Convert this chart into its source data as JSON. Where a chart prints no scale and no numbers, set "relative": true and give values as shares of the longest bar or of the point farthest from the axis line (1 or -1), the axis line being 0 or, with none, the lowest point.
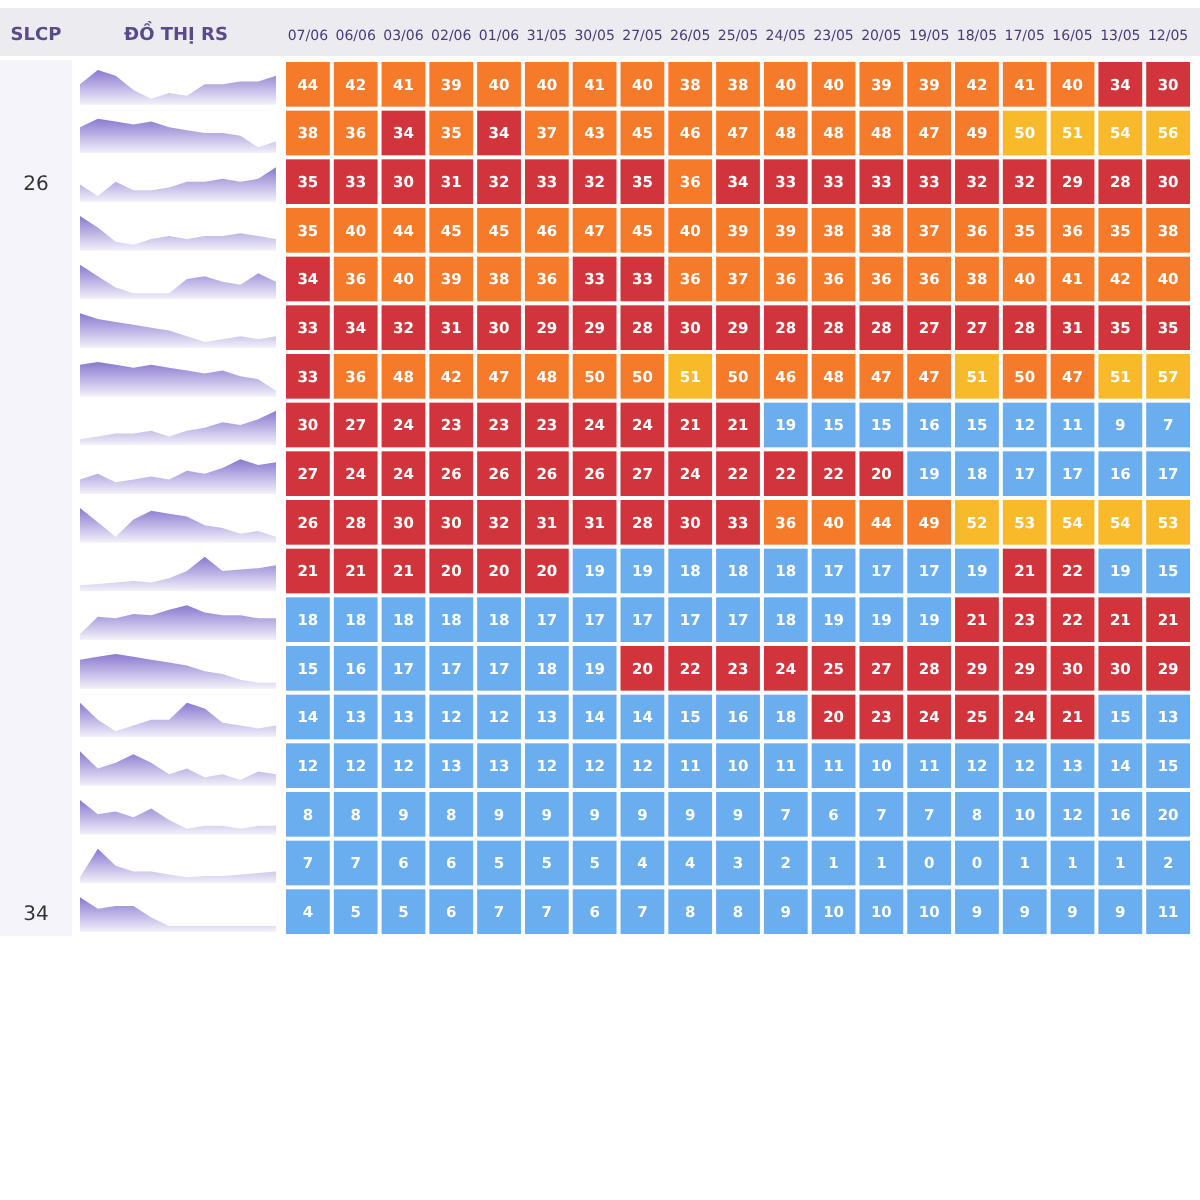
{
  "chart_data": [
    {
      "type": "heatmap",
      "annotations": [
        "SLCP",
        "ĐỒ THỊ RS",
        "26",
        "34"
      ],
      "y_categories": [
        null,
        null,
        null,
        null,
        null,
        null,
        null,
        null,
        null,
        null,
        null,
        null,
        null,
        null,
        null,
        null,
        null,
        null
      ],
      "categories": [
        "07/06",
        "06/06",
        "03/06",
        "02/06",
        "01/06",
        "31/05",
        "30/05",
        "27/05",
        "26/05",
        "25/05",
        "24/05",
        "23/05",
        "20/05",
        "19/05",
        "18/05",
        "17/05",
        "16/05",
        "13/05",
        "12/05"
      ],
      "cells": [
        [
          44,
          42,
          41,
          39,
          40,
          40,
          41,
          40,
          38,
          38,
          40,
          40,
          39,
          39,
          42,
          41,
          40,
          34,
          30
        ],
        [
          38,
          36,
          34,
          35,
          34,
          37,
          43,
          45,
          46,
          47,
          48,
          48,
          48,
          47,
          49,
          50,
          51,
          54,
          56
        ],
        [
          35,
          33,
          30,
          31,
          32,
          33,
          32,
          35,
          36,
          34,
          33,
          33,
          33,
          33,
          32,
          32,
          29,
          28,
          30
        ],
        [
          35,
          40,
          44,
          45,
          45,
          46,
          47,
          45,
          40,
          39,
          39,
          38,
          38,
          37,
          36,
          35,
          36,
          35,
          38
        ],
        [
          34,
          36,
          40,
          39,
          38,
          36,
          33,
          33,
          36,
          37,
          36,
          36,
          36,
          36,
          38,
          40,
          41,
          42,
          40
        ],
        [
          33,
          34,
          32,
          31,
          30,
          29,
          29,
          28,
          30,
          29,
          28,
          28,
          28,
          27,
          27,
          28,
          31,
          35,
          35
        ],
        [
          33,
          36,
          48,
          42,
          47,
          48,
          50,
          50,
          51,
          50,
          46,
          48,
          47,
          47,
          51,
          50,
          47,
          51,
          57
        ],
        [
          30,
          27,
          24,
          23,
          23,
          23,
          24,
          24,
          21,
          21,
          19,
          15,
          15,
          16,
          15,
          12,
          11,
          9,
          7
        ],
        [
          27,
          24,
          24,
          26,
          26,
          26,
          26,
          27,
          24,
          22,
          22,
          22,
          20,
          19,
          18,
          17,
          17,
          16,
          17
        ],
        [
          26,
          28,
          30,
          30,
          32,
          31,
          31,
          28,
          30,
          33,
          36,
          40,
          44,
          49,
          52,
          53,
          54,
          54,
          53
        ],
        [
          21,
          21,
          21,
          20,
          20,
          20,
          19,
          19,
          18,
          18,
          18,
          17,
          17,
          17,
          19,
          21,
          22,
          19,
          15
        ],
        [
          18,
          18,
          18,
          18,
          18,
          17,
          17,
          17,
          17,
          17,
          18,
          19,
          19,
          19,
          21,
          23,
          22,
          21,
          21
        ],
        [
          15,
          16,
          17,
          17,
          17,
          18,
          19,
          20,
          22,
          23,
          24,
          25,
          27,
          28,
          29,
          29,
          30,
          30,
          29
        ],
        [
          14,
          13,
          13,
          12,
          12,
          13,
          14,
          14,
          15,
          16,
          18,
          20,
          23,
          24,
          25,
          24,
          21,
          15,
          13
        ],
        [
          12,
          12,
          12,
          13,
          13,
          12,
          12,
          12,
          11,
          10,
          11,
          11,
          10,
          11,
          12,
          12,
          13,
          14,
          15
        ],
        [
          8,
          8,
          9,
          8,
          9,
          9,
          9,
          9,
          9,
          9,
          7,
          6,
          7,
          7,
          8,
          10,
          12,
          16,
          20
        ],
        [
          7,
          7,
          6,
          6,
          5,
          5,
          5,
          4,
          4,
          3,
          2,
          1,
          1,
          0,
          0,
          1,
          1,
          1,
          2
        ],
        [
          4,
          5,
          5,
          6,
          7,
          7,
          6,
          7,
          8,
          8,
          9,
          10,
          10,
          10,
          9,
          9,
          9,
          9,
          11
        ]
      ],
      "colors": [
        [
          "#f57a2a",
          "#f57a2a",
          "#f57a2a",
          "#f57a2a",
          "#f57a2a",
          "#f57a2a",
          "#f57a2a",
          "#f57a2a",
          "#f57a2a",
          "#f57a2a",
          "#f57a2a",
          "#f57a2a",
          "#f57a2a",
          "#f57a2a",
          "#f57a2a",
          "#f57a2a",
          "#f57a2a",
          "#d1353b",
          "#d1353b"
        ],
        [
          "#f57a2a",
          "#f57a2a",
          "#d1353b",
          "#f57a2a",
          "#d1353b",
          "#f57a2a",
          "#f57a2a",
          "#f57a2a",
          "#f57a2a",
          "#f57a2a",
          "#f57a2a",
          "#f57a2a",
          "#f57a2a",
          "#f57a2a",
          "#f57a2a",
          "#f8b92a",
          "#f8b92a",
          "#f8b92a",
          "#f8b92a"
        ],
        [
          "#d1353b",
          "#d1353b",
          "#d1353b",
          "#d1353b",
          "#d1353b",
          "#d1353b",
          "#d1353b",
          "#d1353b",
          "#f57a2a",
          "#d1353b",
          "#d1353b",
          "#d1353b",
          "#d1353b",
          "#d1353b",
          "#d1353b",
          "#d1353b",
          "#d1353b",
          "#d1353b",
          "#d1353b"
        ],
        [
          "#f57a2a",
          "#f57a2a",
          "#f57a2a",
          "#f57a2a",
          "#f57a2a",
          "#f57a2a",
          "#f57a2a",
          "#f57a2a",
          "#f57a2a",
          "#f57a2a",
          "#f57a2a",
          "#f57a2a",
          "#f57a2a",
          "#f57a2a",
          "#f57a2a",
          "#f57a2a",
          "#f57a2a",
          "#f57a2a",
          "#f57a2a"
        ],
        [
          "#d1353b",
          "#f57a2a",
          "#f57a2a",
          "#f57a2a",
          "#f57a2a",
          "#f57a2a",
          "#d1353b",
          "#d1353b",
          "#f57a2a",
          "#f57a2a",
          "#f57a2a",
          "#f57a2a",
          "#f57a2a",
          "#f57a2a",
          "#f57a2a",
          "#f57a2a",
          "#f57a2a",
          "#f57a2a",
          "#f57a2a"
        ],
        [
          "#d1353b",
          "#d1353b",
          "#d1353b",
          "#d1353b",
          "#d1353b",
          "#d1353b",
          "#d1353b",
          "#d1353b",
          "#d1353b",
          "#d1353b",
          "#d1353b",
          "#d1353b",
          "#d1353b",
          "#d1353b",
          "#d1353b",
          "#d1353b",
          "#d1353b",
          "#d1353b",
          "#d1353b"
        ],
        [
          "#d1353b",
          "#f57a2a",
          "#f57a2a",
          "#f57a2a",
          "#f57a2a",
          "#f57a2a",
          "#f57a2a",
          "#f57a2a",
          "#f8b92a",
          "#f57a2a",
          "#f57a2a",
          "#f57a2a",
          "#f57a2a",
          "#f57a2a",
          "#f8b92a",
          "#f57a2a",
          "#f57a2a",
          "#f8b92a",
          "#f8b92a"
        ],
        [
          "#d1353b",
          "#d1353b",
          "#d1353b",
          "#d1353b",
          "#d1353b",
          "#d1353b",
          "#d1353b",
          "#d1353b",
          "#d1353b",
          "#d1353b",
          "#6aaef0",
          "#6aaef0",
          "#6aaef0",
          "#6aaef0",
          "#6aaef0",
          "#6aaef0",
          "#6aaef0",
          "#6aaef0",
          "#6aaef0"
        ],
        [
          "#d1353b",
          "#d1353b",
          "#d1353b",
          "#d1353b",
          "#d1353b",
          "#d1353b",
          "#d1353b",
          "#d1353b",
          "#d1353b",
          "#d1353b",
          "#d1353b",
          "#d1353b",
          "#d1353b",
          "#6aaef0",
          "#6aaef0",
          "#6aaef0",
          "#6aaef0",
          "#6aaef0",
          "#6aaef0"
        ],
        [
          "#d1353b",
          "#d1353b",
          "#d1353b",
          "#d1353b",
          "#d1353b",
          "#d1353b",
          "#d1353b",
          "#d1353b",
          "#d1353b",
          "#d1353b",
          "#f57a2a",
          "#f57a2a",
          "#f57a2a",
          "#f57a2a",
          "#f8b92a",
          "#f8b92a",
          "#f8b92a",
          "#f8b92a",
          "#f8b92a"
        ],
        [
          "#d1353b",
          "#d1353b",
          "#d1353b",
          "#d1353b",
          "#d1353b",
          "#d1353b",
          "#6aaef0",
          "#6aaef0",
          "#6aaef0",
          "#6aaef0",
          "#6aaef0",
          "#6aaef0",
          "#6aaef0",
          "#6aaef0",
          "#6aaef0",
          "#d1353b",
          "#d1353b",
          "#6aaef0",
          "#6aaef0"
        ],
        [
          "#6aaef0",
          "#6aaef0",
          "#6aaef0",
          "#6aaef0",
          "#6aaef0",
          "#6aaef0",
          "#6aaef0",
          "#6aaef0",
          "#6aaef0",
          "#6aaef0",
          "#6aaef0",
          "#6aaef0",
          "#6aaef0",
          "#6aaef0",
          "#d1353b",
          "#d1353b",
          "#d1353b",
          "#d1353b",
          "#d1353b"
        ],
        [
          "#6aaef0",
          "#6aaef0",
          "#6aaef0",
          "#6aaef0",
          "#6aaef0",
          "#6aaef0",
          "#6aaef0",
          "#d1353b",
          "#d1353b",
          "#d1353b",
          "#d1353b",
          "#d1353b",
          "#d1353b",
          "#d1353b",
          "#d1353b",
          "#d1353b",
          "#d1353b",
          "#d1353b",
          "#d1353b"
        ],
        [
          "#6aaef0",
          "#6aaef0",
          "#6aaef0",
          "#6aaef0",
          "#6aaef0",
          "#6aaef0",
          "#6aaef0",
          "#6aaef0",
          "#6aaef0",
          "#6aaef0",
          "#6aaef0",
          "#d1353b",
          "#d1353b",
          "#d1353b",
          "#d1353b",
          "#d1353b",
          "#d1353b",
          "#6aaef0",
          "#6aaef0"
        ],
        [
          "#6aaef0",
          "#6aaef0",
          "#6aaef0",
          "#6aaef0",
          "#6aaef0",
          "#6aaef0",
          "#6aaef0",
          "#6aaef0",
          "#6aaef0",
          "#6aaef0",
          "#6aaef0",
          "#6aaef0",
          "#6aaef0",
          "#6aaef0",
          "#6aaef0",
          "#6aaef0",
          "#6aaef0",
          "#6aaef0",
          "#6aaef0"
        ],
        [
          "#6aaef0",
          "#6aaef0",
          "#6aaef0",
          "#6aaef0",
          "#6aaef0",
          "#6aaef0",
          "#6aaef0",
          "#6aaef0",
          "#6aaef0",
          "#6aaef0",
          "#6aaef0",
          "#6aaef0",
          "#6aaef0",
          "#6aaef0",
          "#6aaef0",
          "#6aaef0",
          "#6aaef0",
          "#6aaef0",
          "#6aaef0"
        ],
        [
          "#6aaef0",
          "#6aaef0",
          "#6aaef0",
          "#6aaef0",
          "#6aaef0",
          "#6aaef0",
          "#6aaef0",
          "#6aaef0",
          "#6aaef0",
          "#6aaef0",
          "#6aaef0",
          "#6aaef0",
          "#6aaef0",
          "#6aaef0",
          "#6aaef0",
          "#6aaef0",
          "#6aaef0",
          "#6aaef0",
          "#6aaef0"
        ],
        [
          "#6aaef0",
          "#6aaef0",
          "#6aaef0",
          "#6aaef0",
          "#6aaef0",
          "#6aaef0",
          "#6aaef0",
          "#6aaef0",
          "#6aaef0",
          "#6aaef0",
          "#6aaef0",
          "#6aaef0",
          "#6aaef0",
          "#6aaef0",
          "#6aaef0",
          "#6aaef0",
          "#6aaef0",
          "#6aaef0",
          "#6aaef0"
        ]
      ],
      "data_labels": true
    },
    {
      "type": "area",
      "relative": true,
      "color": "#8a78d0",
      "categories": [
        null,
        null,
        null,
        null,
        null,
        null,
        null,
        null,
        null,
        null,
        null,
        null
      ],
      "values": [
        0.5,
        1,
        0.8,
        0.3,
        0,
        0.2,
        0.1,
        0.5,
        0.5,
        0.6,
        0.6,
        0.8
      ]
    },
    {
      "type": "area",
      "relative": true,
      "color": "#8a78d0",
      "categories": [
        null,
        null,
        null,
        null,
        null,
        null,
        null,
        null,
        null,
        null,
        null,
        null
      ],
      "values": [
        0.7,
        1,
        0.9,
        0.8,
        0.9,
        0.7,
        0.6,
        0.5,
        0.5,
        0.4,
        0,
        0.2
      ]
    },
    {
      "type": "area",
      "relative": true,
      "color": "#8a78d0",
      "categories": [
        null,
        null,
        null,
        null,
        null,
        null,
        null,
        null,
        null,
        null,
        null,
        null
      ],
      "values": [
        0.4,
        0,
        0.5,
        0.2,
        0.2,
        0.3,
        0.5,
        0.5,
        0.6,
        0.5,
        0.6,
        1
      ]
    },
    {
      "type": "area",
      "relative": true,
      "color": "#8a78d0",
      "categories": [
        null,
        null,
        null,
        null,
        null,
        null,
        null,
        null,
        null,
        null,
        null,
        null
      ],
      "values": [
        1,
        0.6,
        0.1,
        0,
        0.2,
        0.3,
        0.2,
        0.3,
        0.3,
        0.4,
        0.3,
        0.2
      ]
    },
    {
      "type": "area",
      "relative": true,
      "color": "#8a78d0",
      "categories": [
        null,
        null,
        null,
        null,
        null,
        null,
        null,
        null,
        null,
        null,
        null,
        null
      ],
      "values": [
        1,
        0.6,
        0.2,
        0,
        0,
        0,
        0.5,
        0.6,
        0.4,
        0.3,
        0.7,
        0.4
      ]
    },
    {
      "type": "area",
      "relative": true,
      "color": "#8a78d0",
      "categories": [
        null,
        null,
        null,
        null,
        null,
        null,
        null,
        null,
        null,
        null,
        null,
        null
      ],
      "values": [
        1,
        0.8,
        0.7,
        0.6,
        0.5,
        0.4,
        0.2,
        0,
        0.1,
        0.2,
        0.1,
        0.2
      ]
    },
    {
      "type": "area",
      "relative": true,
      "color": "#8a78d0",
      "categories": [
        null,
        null,
        null,
        null,
        null,
        null,
        null,
        null,
        null,
        null,
        null,
        null
      ],
      "values": [
        0.9,
        1,
        0.9,
        0.8,
        0.9,
        0.8,
        0.7,
        0.6,
        0.7,
        0.5,
        0.4,
        0
      ]
    },
    {
      "type": "area",
      "relative": true,
      "color": "#8a78d0",
      "categories": [
        null,
        null,
        null,
        null,
        null,
        null,
        null,
        null,
        null,
        null,
        null,
        null
      ],
      "values": [
        0,
        0.1,
        0.2,
        0.2,
        0.3,
        0.1,
        0.3,
        0.4,
        0.6,
        0.5,
        0.7,
        1
      ]
    },
    {
      "type": "area",
      "relative": true,
      "color": "#8a78d0",
      "categories": [
        null,
        null,
        null,
        null,
        null,
        null,
        null,
        null,
        null,
        null,
        null,
        null
      ],
      "values": [
        0.3,
        0.5,
        0.2,
        0.3,
        0.4,
        0.3,
        0.6,
        0.5,
        0.7,
        1,
        0.8,
        0.9
      ]
    },
    {
      "type": "area",
      "relative": true,
      "color": "#8a78d0",
      "categories": [
        null,
        null,
        null,
        null,
        null,
        null,
        null,
        null,
        null,
        null,
        null,
        null
      ],
      "values": [
        1,
        0.5,
        0,
        0.6,
        0.9,
        0.8,
        0.7,
        0.4,
        0.3,
        0.1,
        0.2,
        0
      ]
    },
    {
      "type": "area",
      "relative": true,
      "color": "#8a78d0",
      "categories": [
        null,
        null,
        null,
        null,
        null,
        null,
        null,
        null,
        null,
        null,
        null,
        null
      ],
      "values": [
        0,
        0.05,
        0.1,
        0.15,
        0.1,
        0.25,
        0.5,
        1,
        0.5,
        0.55,
        0.6,
        0.7
      ]
    },
    {
      "type": "area",
      "relative": true,
      "color": "#8a78d0",
      "categories": [
        null,
        null,
        null,
        null,
        null,
        null,
        null,
        null,
        null,
        null,
        null,
        null
      ],
      "values": [
        0,
        0.6,
        0.55,
        0.7,
        0.65,
        0.85,
        1,
        0.75,
        0.65,
        0.65,
        0.55,
        0.55
      ]
    },
    {
      "type": "area",
      "relative": true,
      "color": "#8a78d0",
      "categories": [
        null,
        null,
        null,
        null,
        null,
        null,
        null,
        null,
        null,
        null,
        null,
        null
      ],
      "values": [
        0.8,
        0.9,
        1,
        0.9,
        0.8,
        0.7,
        0.6,
        0.4,
        0.3,
        0.1,
        0,
        0
      ]
    },
    {
      "type": "area",
      "relative": true,
      "color": "#8a78d0",
      "categories": [
        null,
        null,
        null,
        null,
        null,
        null,
        null,
        null,
        null,
        null,
        null,
        null
      ],
      "values": [
        1,
        0.4,
        0,
        0.2,
        0.4,
        0.4,
        1,
        0.8,
        0.3,
        0.2,
        0.1,
        0.2
      ]
    },
    {
      "type": "area",
      "relative": true,
      "color": "#8a78d0",
      "categories": [
        null,
        null,
        null,
        null,
        null,
        null,
        null,
        null,
        null,
        null,
        null,
        null
      ],
      "values": [
        1,
        0.4,
        0.6,
        0.9,
        0.6,
        0.2,
        0.4,
        0.1,
        0.2,
        0,
        0.3,
        0.2
      ]
    },
    {
      "type": "area",
      "relative": true,
      "color": "#8a78d0",
      "categories": [
        null,
        null,
        null,
        null,
        null,
        null,
        null,
        null,
        null,
        null,
        null,
        null
      ],
      "values": [
        1,
        0.5,
        0.6,
        0.4,
        0.7,
        0.3,
        0,
        0.1,
        0.1,
        0,
        0.1,
        0.1
      ]
    },
    {
      "type": "area",
      "relative": true,
      "color": "#8a78d0",
      "categories": [
        null,
        null,
        null,
        null,
        null,
        null,
        null,
        null,
        null,
        null,
        null,
        null
      ],
      "values": [
        0,
        1,
        0.4,
        0.2,
        0.2,
        0.1,
        0,
        0.05,
        0.05,
        0.1,
        0.15,
        0.2
      ]
    },
    {
      "type": "area",
      "relative": true,
      "color": "#8a78d0",
      "categories": [
        null,
        null,
        null,
        null,
        null,
        null,
        null,
        null,
        null,
        null,
        null,
        null
      ],
      "values": [
        1,
        0.6,
        0.7,
        0.7,
        0.3,
        0,
        0,
        0,
        0,
        0,
        0,
        0
      ]
    }
  ]
}
